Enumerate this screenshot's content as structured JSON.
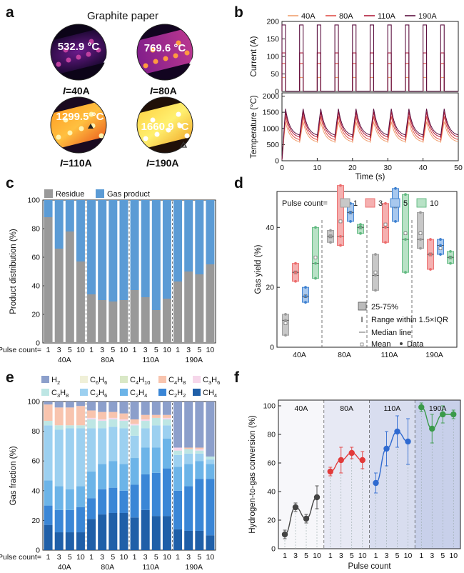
{
  "panel_labels": [
    "a",
    "b",
    "c",
    "d",
    "e",
    "f"
  ],
  "colors": {
    "i40": "#f0a070",
    "i80": "#e0504a",
    "i110": "#b01c3a",
    "i190": "#5c1040",
    "residue": "#999999",
    "gas": "#5b9bd5",
    "g1": "#9a9a9a",
    "g3": "#ec6b6b",
    "g5": "#3a7fd0",
    "g10": "#5fb87f",
    "f40": "#444444",
    "f80": "#e23a3a",
    "f110": "#2f6ad0",
    "f190": "#3a9a4a"
  },
  "panel_a": {
    "title": "Graphite paper",
    "images": [
      {
        "temp": "532.9 °C",
        "current_var": "I",
        "current_val": "=40A"
      },
      {
        "temp": "769.6 °C",
        "current_var": "I",
        "current_val": "=80A"
      },
      {
        "temp": "1299.5 °C",
        "current_var": "I",
        "current_val": "=110A"
      },
      {
        "temp": "1660.9 °C",
        "current_var": "I",
        "current_val": "=190A"
      }
    ]
  },
  "chart_data": [
    {
      "id": "b",
      "type": "line",
      "legend": [
        "40A",
        "80A",
        "110A",
        "190A"
      ],
      "pulse_on_starts_s": [
        0,
        5,
        10,
        15,
        20,
        25,
        30,
        35,
        40,
        45
      ],
      "pulse_width_s": 1,
      "series": [
        {
          "name": "40A",
          "current_A": 40,
          "base_C": 560,
          "peak_C": 1210
        },
        {
          "name": "80A",
          "current_A": 80,
          "base_C": 620,
          "peak_C": 1380
        },
        {
          "name": "110A",
          "current_A": 110,
          "base_C": 700,
          "peak_C": 1510
        },
        {
          "name": "190A",
          "current_A": 190,
          "base_C": 760,
          "peak_C": 1610
        }
      ],
      "top": {
        "ylabel": "Current (A)",
        "ylim": [
          0,
          200
        ],
        "yticks": [
          "0",
          "50",
          "100",
          "150",
          "200"
        ]
      },
      "bottom": {
        "ylabel": "Temperature (°C)",
        "ylim": [
          0,
          2100
        ],
        "yticks": [
          "0",
          "500",
          "1000",
          "1500",
          "2000"
        ]
      },
      "xlabel": "Time (s)",
      "xlim": [
        0,
        50
      ],
      "xticks": [
        "0",
        "10",
        "20",
        "30",
        "40",
        "50"
      ]
    },
    {
      "id": "c",
      "type": "bar",
      "legend": [
        "Residue",
        "Gas product"
      ],
      "ylabel": "Product distribution (%)",
      "ylim": [
        0,
        100
      ],
      "yticks": [
        "0",
        "20",
        "40",
        "60",
        "80",
        "100"
      ],
      "x_prefix": "Pulse count=",
      "pulse_labels": [
        "1",
        "3",
        "5",
        "10"
      ],
      "groups": [
        "40A",
        "80A",
        "110A",
        "190A"
      ],
      "residue": [
        [
          88,
          66,
          78,
          57
        ],
        [
          34,
          30,
          29,
          30
        ],
        [
          37,
          32,
          23,
          31
        ],
        [
          43,
          50,
          48,
          55
        ]
      ]
    },
    {
      "id": "d",
      "type": "box",
      "ylabel": "Gas yield (%)",
      "ylim": [
        0,
        52
      ],
      "yticks": [
        "0",
        "20",
        "40"
      ],
      "legend_title": "Pulse count=",
      "legend": [
        "1",
        "3",
        "5",
        "10"
      ],
      "legend_notes": [
        "25-75%",
        "Range within 1.5×IQR",
        "Median line",
        "Mean",
        "Data"
      ],
      "groups": [
        "40A",
        "80A",
        "110A",
        "190A"
      ],
      "boxes": [
        [
          {
            "min": 4,
            "q1": 4,
            "med": 9,
            "q3": 11,
            "max": 11,
            "mean": 8,
            "pts": [
              4,
              9,
              11
            ]
          },
          {
            "min": 22,
            "q1": 22,
            "med": 25,
            "q3": 28,
            "max": 28,
            "mean": 25,
            "pts": [
              22,
              25,
              28
            ]
          },
          {
            "min": 15,
            "q1": 15,
            "med": 17,
            "q3": 20,
            "max": 20,
            "mean": 17,
            "pts": [
              15,
              17,
              20
            ]
          },
          {
            "min": 23,
            "q1": 23,
            "med": 28,
            "q3": 40,
            "max": 40,
            "mean": 30,
            "pts": [
              23,
              28,
              40
            ]
          }
        ],
        [
          {
            "min": 35,
            "q1": 35,
            "med": 37,
            "q3": 39,
            "max": 39,
            "mean": 37,
            "pts": [
              35,
              37,
              39
            ]
          },
          {
            "min": 34,
            "q1": 34,
            "med": 37,
            "q3": 54,
            "max": 54,
            "mean": 42,
            "pts": [
              34,
              37,
              54
            ]
          },
          {
            "min": 42,
            "q1": 42,
            "med": 45,
            "q3": 48,
            "max": 48,
            "mean": 45,
            "pts": [
              42,
              45,
              48
            ]
          },
          {
            "min": 38,
            "q1": 38,
            "med": 40,
            "q3": 41,
            "max": 41,
            "mean": 40,
            "pts": [
              38,
              40,
              41
            ]
          }
        ],
        [
          {
            "min": 19,
            "q1": 19,
            "med": 24,
            "q3": 31,
            "max": 31,
            "mean": 25,
            "pts": [
              19,
              24,
              31
            ]
          },
          {
            "min": 35,
            "q1": 35,
            "med": 40,
            "q3": 48,
            "max": 48,
            "mean": 41,
            "pts": [
              35,
              40,
              48
            ]
          },
          {
            "min": 42,
            "q1": 42,
            "med": 48,
            "q3": 53,
            "max": 53,
            "mean": 47,
            "pts": [
              42,
              48,
              53
            ]
          },
          {
            "min": 25,
            "q1": 25,
            "med": 36,
            "q3": 51,
            "max": 51,
            "mean": 38,
            "pts": [
              25,
              36,
              51
            ]
          }
        ],
        [
          {
            "min": 33,
            "q1": 33,
            "med": 36,
            "q3": 45,
            "max": 45,
            "mean": 38,
            "pts": [
              33,
              36,
              45
            ]
          },
          {
            "min": 26,
            "q1": 26,
            "med": 31,
            "q3": 36,
            "max": 36,
            "mean": 31,
            "pts": [
              26,
              31,
              36
            ]
          },
          {
            "min": 31,
            "q1": 31,
            "med": 34,
            "q3": 36,
            "max": 36,
            "mean": 33,
            "pts": [
              31,
              34,
              36
            ]
          },
          {
            "min": 28,
            "q1": 28,
            "med": 30,
            "q3": 32,
            "max": 32,
            "mean": 30,
            "pts": [
              28,
              30,
              32
            ]
          }
        ]
      ]
    },
    {
      "id": "e",
      "type": "stacked-bar",
      "ylabel": "Gas fraction (%)",
      "ylim": [
        0,
        100
      ],
      "yticks": [
        "0",
        "20",
        "40",
        "60",
        "80",
        "100"
      ],
      "x_prefix": "Pulse count=",
      "pulse_labels": [
        "1",
        "3",
        "5",
        "10"
      ],
      "groups": [
        "40A",
        "80A",
        "110A",
        "190A"
      ],
      "species": [
        {
          "name": "CH4",
          "base": "CH",
          "sub": "4",
          "color": "#1f5fa8"
        },
        {
          "name": "C2H2",
          "base": "C",
          "sub": "2",
          "base2": "H",
          "sub2": "2",
          "color": "#3a86d6"
        },
        {
          "name": "C2H4",
          "base": "C",
          "sub": "2",
          "base2": "H",
          "sub2": "4",
          "color": "#6cb4e8"
        },
        {
          "name": "C2H6",
          "base": "C",
          "sub": "2",
          "base2": "H",
          "sub2": "6",
          "color": "#9cd0f0"
        },
        {
          "name": "C3H8",
          "base": "C",
          "sub": "3",
          "base2": "H",
          "sub2": "8",
          "color": "#bde6e4"
        },
        {
          "name": "C3H6",
          "base": "C",
          "sub": "3",
          "base2": "H",
          "sub2": "6",
          "color": "#f6d7ea"
        },
        {
          "name": "C4H8",
          "base": "C",
          "sub": "4",
          "base2": "H",
          "sub2": "8",
          "color": "#f8c4ae"
        },
        {
          "name": "C4H10",
          "base": "C",
          "sub": "4",
          "base2": "H",
          "sub2": "10",
          "color": "#d9e8c6"
        },
        {
          "name": "C6H6",
          "base": "C",
          "sub": "6",
          "base2": "H",
          "sub2": "6",
          "color": "#f0f0d8"
        },
        {
          "name": "H2",
          "base": "H",
          "sub": "2",
          "color": "#8c9fcb"
        }
      ],
      "legend_order": [
        "H2",
        "C6H6",
        "C4H10",
        "C4H8",
        "C3H6",
        "C3H8",
        "C2H6",
        "C2H4",
        "C2H2",
        "CH4"
      ],
      "values": [
        [
          [
            17,
            13,
            17,
            37,
            3,
            0,
            11,
            0,
            0,
            2
          ],
          [
            12,
            15,
            16,
            38,
            3,
            0,
            12,
            0,
            0,
            4
          ],
          [
            12,
            15,
            14,
            41,
            2,
            0,
            12,
            0,
            0,
            4
          ],
          [
            12,
            17,
            14,
            39,
            2,
            0,
            13,
            0,
            0,
            3
          ]
        ],
        [
          [
            21,
            14,
            18,
            29,
            6,
            1,
            5,
            0,
            0,
            6
          ],
          [
            24,
            17,
            17,
            24,
            5,
            1,
            5,
            0,
            0,
            7
          ],
          [
            25,
            17,
            18,
            23,
            5,
            1,
            4,
            0,
            0,
            7
          ],
          [
            25,
            15,
            18,
            24,
            5,
            1,
            4,
            0,
            0,
            8
          ]
        ],
        [
          [
            22,
            22,
            18,
            15,
            7,
            1,
            3,
            0,
            0,
            12
          ],
          [
            27,
            24,
            18,
            13,
            5,
            1,
            3,
            0,
            0,
            9
          ],
          [
            23,
            29,
            17,
            15,
            5,
            0,
            2,
            0,
            0,
            9
          ],
          [
            23,
            32,
            20,
            9,
            4,
            1,
            2,
            0,
            0,
            9
          ]
        ],
        [
          [
            14,
            26,
            16,
            8,
            3,
            2,
            0,
            0,
            0,
            31
          ],
          [
            13,
            30,
            15,
            7,
            3,
            0,
            1,
            0,
            0,
            31
          ],
          [
            13,
            35,
            12,
            5,
            2,
            1,
            1,
            0,
            0,
            31
          ],
          [
            10,
            38,
            10,
            3,
            2,
            0,
            0,
            0,
            0,
            37
          ]
        ]
      ]
    },
    {
      "id": "f",
      "type": "scatter",
      "ylabel": "Hydrogen-to-gas conversion (%)",
      "xlabel": "Pulse count",
      "ylim": [
        0,
        104
      ],
      "yticks": [
        "0",
        "20",
        "40",
        "60",
        "80",
        "100"
      ],
      "pulse_labels": [
        "1",
        "3",
        "5",
        "10"
      ],
      "groups": [
        "40A",
        "80A",
        "110A",
        "190A"
      ],
      "values": [
        [
          10,
          29,
          21,
          36
        ],
        [
          54,
          62,
          67,
          62
        ],
        [
          46,
          70,
          82,
          75
        ],
        [
          99,
          84,
          94,
          94
        ]
      ],
      "errors": [
        [
          3,
          3,
          3,
          8
        ],
        [
          3,
          9,
          4,
          6
        ],
        [
          7,
          12,
          11,
          16
        ],
        [
          3,
          10,
          6,
          3
        ]
      ]
    }
  ]
}
